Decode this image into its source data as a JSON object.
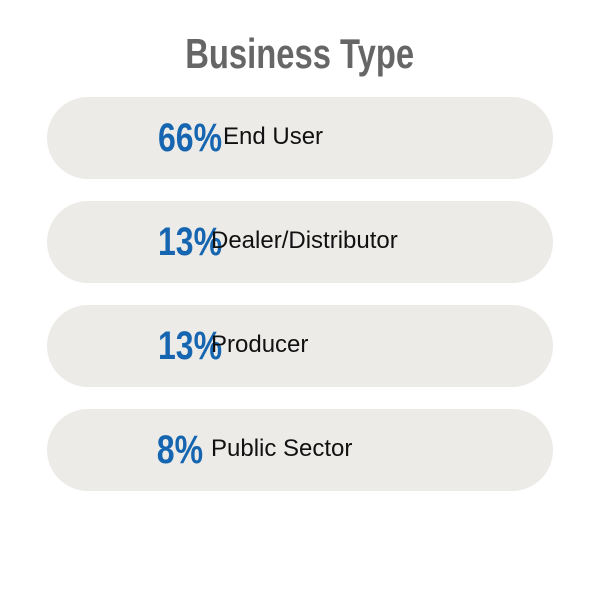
{
  "chart_data": {
    "type": "table",
    "title": "Business Type",
    "categories": [
      "End User",
      "Dealer/Distributor",
      "Producer",
      "Public Sector"
    ],
    "values": [
      66,
      13,
      13,
      8
    ],
    "value_labels": [
      "66%",
      "13%",
      "13%",
      "8%"
    ],
    "colors": {
      "value": "#1565b0",
      "title": "#666666",
      "row_background": "#ecebe8"
    }
  }
}
